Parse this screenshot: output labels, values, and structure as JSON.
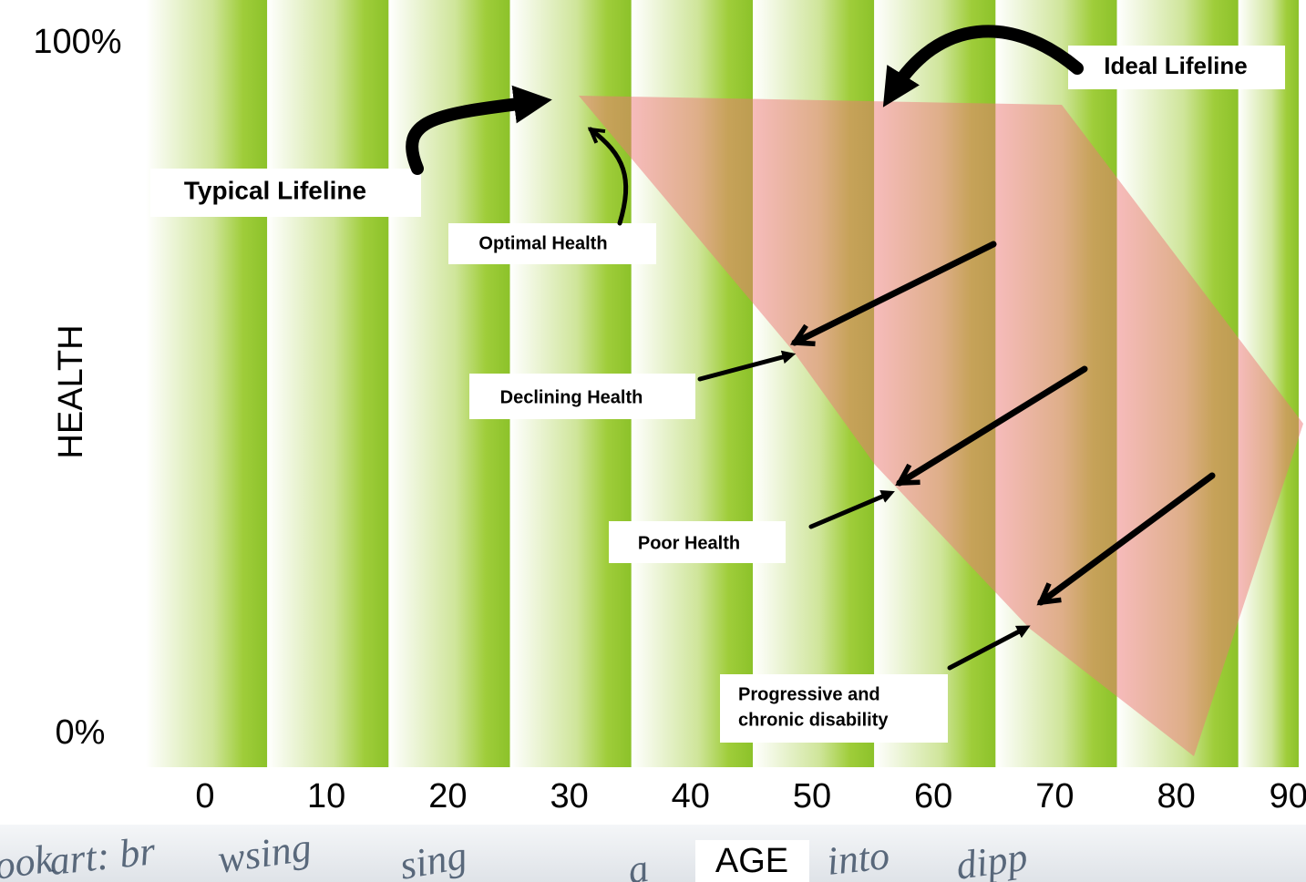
{
  "axes": {
    "y_top": "100%",
    "y_bottom": "0%",
    "y_title": "HEALTH",
    "x_title": "AGE",
    "x_ticks": [
      0,
      10,
      20,
      30,
      40,
      50,
      60,
      70,
      80,
      90
    ]
  },
  "annotations": {
    "ideal_lifeline": "Ideal Lifeline",
    "typical_lifeline": "Typical Lifeline",
    "optimal_health": "Optimal Health",
    "declining_health": "Declining Health",
    "poor_health": "Poor Health",
    "progressive_disability": [
      "Progressive and",
      "chronic disability"
    ]
  },
  "background_words": [
    "ook",
    "art: br",
    "wsing",
    "sing",
    "a",
    "into",
    "dipp"
  ]
}
